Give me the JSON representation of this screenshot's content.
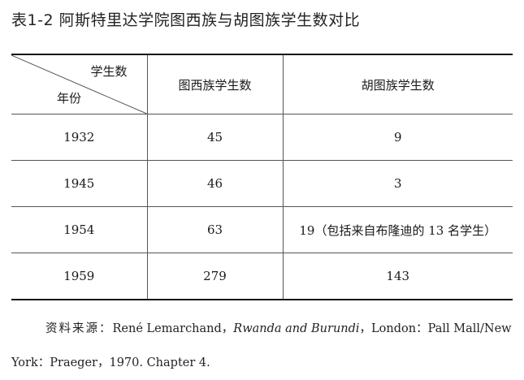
{
  "title": "表1-2  阿斯特里达学院图西族与胡图族学生数对比",
  "table": {
    "corner_top": "学生数",
    "corner_bottom": "年份",
    "col_tutsi": "图西族学生数",
    "col_hutu": "胡图族学生数",
    "rows": [
      {
        "year": "1932",
        "tutsi": "45",
        "hutu": "9"
      },
      {
        "year": "1945",
        "tutsi": "46",
        "hutu": "3"
      },
      {
        "year": "1954",
        "tutsi": "63",
        "hutu": "19（包括来自布隆迪的 13 名学生）"
      },
      {
        "year": "1959",
        "tutsi": "279",
        "hutu": "143"
      }
    ]
  },
  "source": {
    "label": "资料来源：",
    "author": "René Lemarchand，",
    "book": "Rwanda and Burundi",
    "rest": "，London：Pall Mall/New York：Praeger，1970. Chapter 4."
  }
}
